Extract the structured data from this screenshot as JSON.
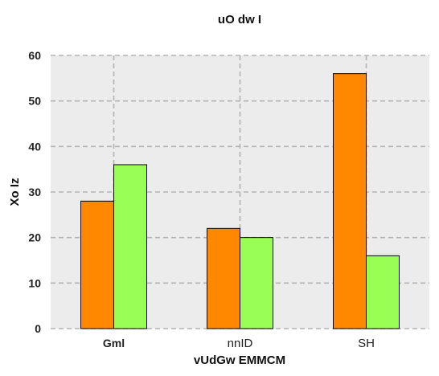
{
  "chart_data": {
    "type": "bar",
    "title": "uO dw I",
    "xlabel": "vUdGw EMMCM",
    "ylabel": "Xo Iz",
    "categories": [
      "Gml",
      "nnID",
      "SH"
    ],
    "series": [
      {
        "values": [
          28,
          22,
          56
        ],
        "color": "#ff8800"
      },
      {
        "values": [
          36,
          20,
          16
        ],
        "color": "#99ff55"
      }
    ],
    "ylim": [
      0,
      60
    ],
    "yticks": [
      0,
      10,
      20,
      30,
      40,
      50,
      60
    ],
    "grid": true,
    "legend": "none",
    "background_color": "#ececec",
    "grid_color": "#b3b3b3"
  }
}
